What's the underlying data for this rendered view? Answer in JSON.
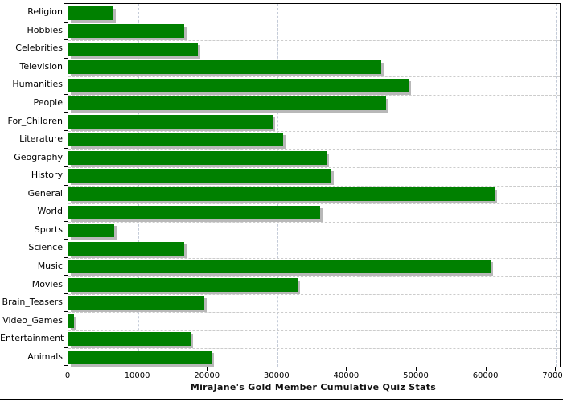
{
  "chart_data": {
    "type": "bar",
    "orientation": "horizontal",
    "title": "MiraJane's Gold Member Cumulative Quiz Stats",
    "categories": [
      "Religion",
      "Hobbies",
      "Celebrities",
      "Television",
      "Humanities",
      "People",
      "For_Children",
      "Literature",
      "Geography",
      "History",
      "General",
      "World",
      "Sports",
      "Science",
      "Music",
      "Movies",
      "Brain_Teasers",
      "Video_Games",
      "Entertainment",
      "Animals"
    ],
    "values": [
      6500,
      16600,
      18600,
      44900,
      48900,
      45600,
      29300,
      30800,
      37100,
      37800,
      61200,
      36100,
      6600,
      16600,
      60600,
      32900,
      19500,
      800,
      17500,
      20500
    ],
    "x_ticks": [
      0,
      10000,
      20000,
      30000,
      40000,
      50000,
      60000,
      70000
    ],
    "xlim": [
      0,
      70000
    ],
    "xlabel": "",
    "ylabel": "",
    "grid": "dashed, vertical at every 10000 and horizontal between category rows",
    "legend": "none",
    "colors": {
      "bar_fill": "#008000",
      "bar_shadow": "#b8b8b8",
      "vertical_grid": "#c4cbd8",
      "horizontal_grid": "#cccccc",
      "axis_and_border": "#000000",
      "background": "#ffffff",
      "text": "#000000"
    }
  }
}
